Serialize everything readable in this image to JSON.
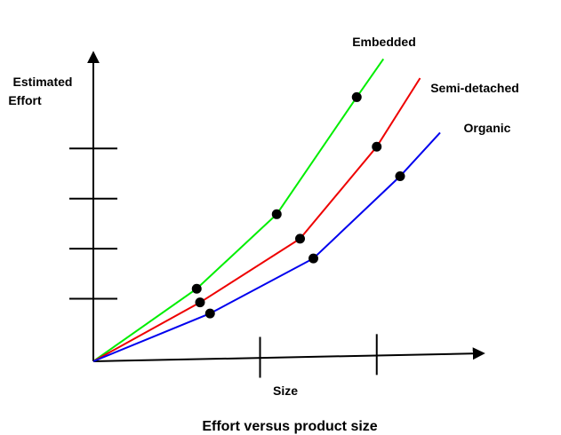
{
  "chart_data": {
    "type": "line",
    "title": "Effort versus product size",
    "xlabel": "Size",
    "ylabel_lines": [
      "Estimated",
      "Effort"
    ],
    "xlim": [
      0,
      10
    ],
    "ylim": [
      0,
      10
    ],
    "x_ticks": [
      5,
      8.5
    ],
    "y_ticks": [
      2.5,
      4.5,
      6.5,
      8.5
    ],
    "series": [
      {
        "name": "Embedded",
        "color": "#00ee00",
        "points": [
          [
            0,
            0
          ],
          [
            3.1,
            2.8
          ],
          [
            5.5,
            5.7
          ],
          [
            7.9,
            10.3
          ],
          [
            8.7,
            11.8
          ]
        ],
        "markers": [
          [
            3.1,
            2.8
          ],
          [
            5.5,
            5.7
          ],
          [
            7.9,
            10.3
          ]
        ]
      },
      {
        "name": "Semi-detached",
        "color": "#ee0000",
        "points": [
          [
            0,
            0
          ],
          [
            3.2,
            2.25
          ],
          [
            6.2,
            4.7
          ],
          [
            8.5,
            8.3
          ],
          [
            9.8,
            11.0
          ]
        ],
        "markers": [
          [
            3.2,
            2.25
          ],
          [
            6.2,
            4.7
          ],
          [
            8.5,
            8.3
          ]
        ]
      },
      {
        "name": "Organic",
        "color": "#0000ee",
        "points": [
          [
            0,
            0
          ],
          [
            3.5,
            1.8
          ],
          [
            6.6,
            3.9
          ],
          [
            9.2,
            7.1
          ],
          [
            10.4,
            8.8
          ]
        ],
        "markers": [
          [
            3.5,
            1.8
          ],
          [
            6.6,
            3.9
          ],
          [
            9.2,
            7.1
          ]
        ]
      }
    ]
  }
}
